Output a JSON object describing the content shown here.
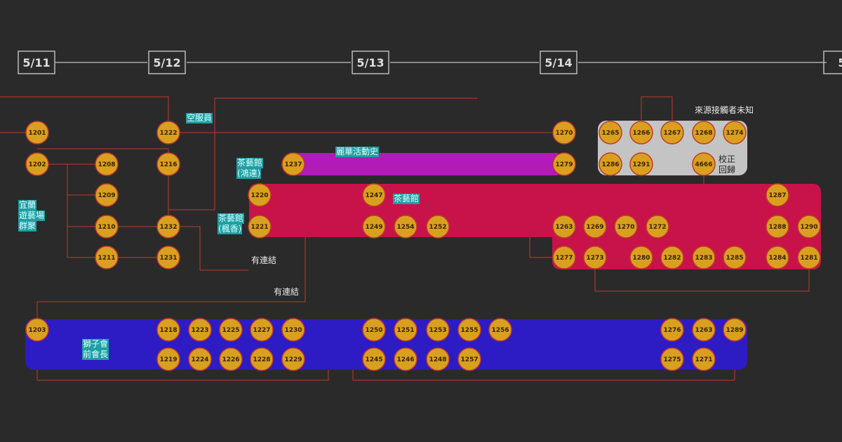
{
  "dates": [
    "5/11",
    "5/12",
    "5/13",
    "5/14",
    "5"
  ],
  "nodes": [
    "1201",
    "1202",
    "1203",
    "1208",
    "1209",
    "1210",
    "1211",
    "1222",
    "1216",
    "1232",
    "1231",
    "1237",
    "1220",
    "1221",
    "1247",
    "1249",
    "1254",
    "1252",
    "1270",
    "1279",
    "1265",
    "1266",
    "1267",
    "1268",
    "1274",
    "1286",
    "1291",
    "4666",
    "1287",
    "1263",
    "1269",
    "1270",
    "1272",
    "1288",
    "1290",
    "1277",
    "1273",
    "1280",
    "1282",
    "1283",
    "1285",
    "1284",
    "1281",
    "1218",
    "1223",
    "1225",
    "1227",
    "1230",
    "1219",
    "1224",
    "1226",
    "1228",
    "1229",
    "1250",
    "1251",
    "1253",
    "1255",
    "1256",
    "1245",
    "1246",
    "1248",
    "1257",
    "1276",
    "1263",
    "1289",
    "1275",
    "1271"
  ],
  "tags": [
    [
      "空服員"
    ],
    [
      "茶藝館",
      "(鴻達)"
    ],
    [
      "茶藝館",
      "(楓香)"
    ],
    [
      "宜蘭",
      "遊藝場",
      "群聚"
    ],
    [
      "茶藝館"
    ],
    [
      "麗華活動史"
    ],
    [
      "獅子會",
      "前會長"
    ]
  ],
  "notes": [
    [
      "來源接觸者未知"
    ],
    [
      "有連結"
    ],
    [
      "有連結"
    ],
    [
      "校正",
      "回歸"
    ]
  ]
}
